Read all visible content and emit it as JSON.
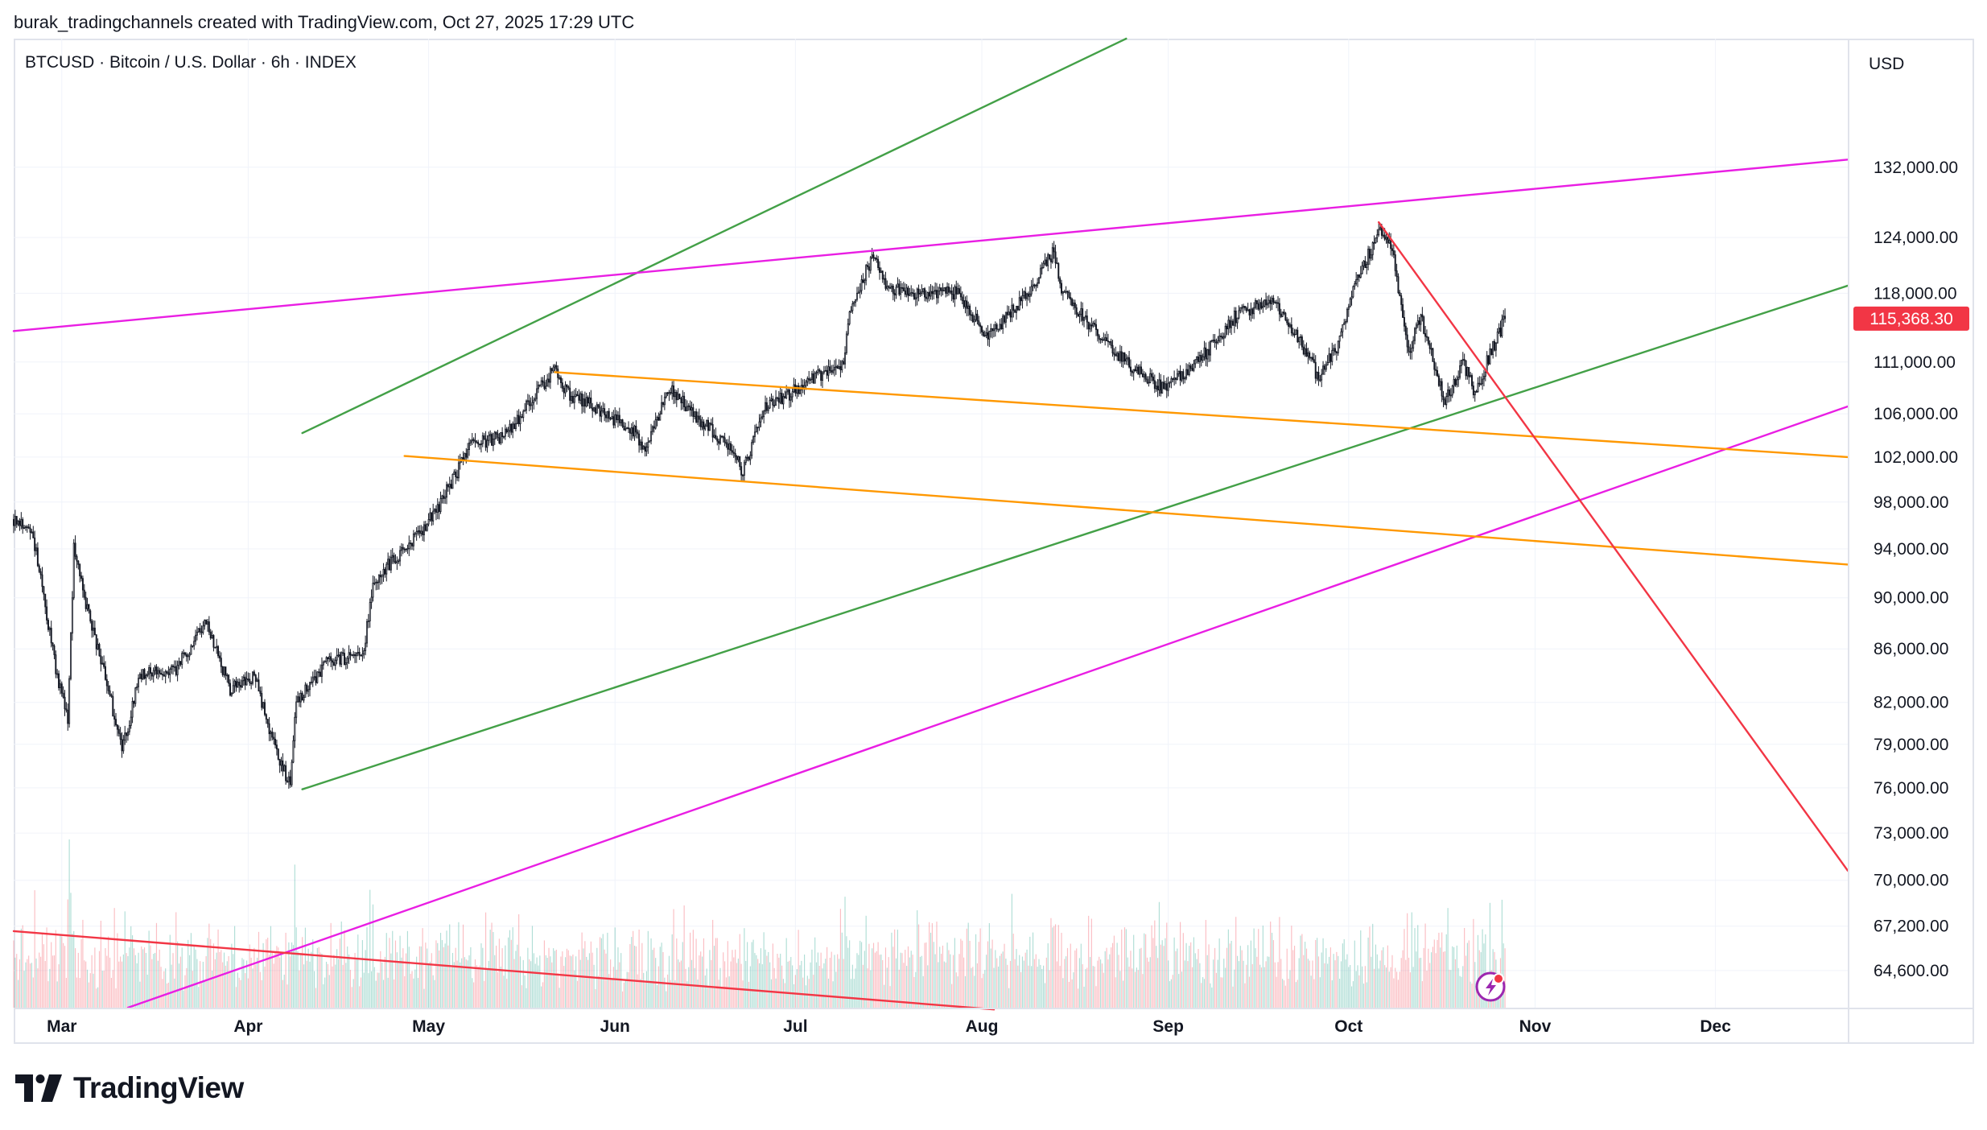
{
  "header": {
    "attribution": "burak_tradingchannels created with TradingView.com, Oct 27, 2025 17:29 UTC"
  },
  "footer": {
    "logo_text": "TradingView"
  },
  "colors": {
    "up": "#089981",
    "down": "#f23645",
    "candle": "#131722",
    "green_line": "#43a047",
    "magenta_line": "#e91ee3",
    "orange_line": "#ff9800",
    "red_line": "#f23645",
    "grid": "#f0f3fa",
    "axis_text": "#131722",
    "price_label_bg": "#f23645"
  },
  "chart_data": {
    "type": "candlestick",
    "symbol_title": "BTCUSD · Bitcoin / U.S. Dollar · 6h · INDEX",
    "currency_label": "USD",
    "current_price": 115368.3,
    "current_price_label": "115,368.30",
    "scale": "log",
    "ylim": [
      62500,
      148000
    ],
    "y_ticks": [
      132000,
      124000,
      118000,
      111000,
      106000,
      102000,
      98000,
      94000,
      90000,
      86000,
      82000,
      79000,
      76000,
      73000,
      70000,
      67200,
      64600
    ],
    "y_tick_labels": [
      "132,000.00",
      "124,000.00",
      "118,000.00",
      "111,000.00",
      "106,000.00",
      "102,000.00",
      "98,000.00",
      "94,000.00",
      "90,000.00",
      "86,000.00",
      "82,000.00",
      "79,000.00",
      "76,000.00",
      "73,000.00",
      "70,000.00",
      "67,200.00",
      "64,600.00"
    ],
    "x_range": [
      "2025-02-21",
      "2025-12-23"
    ],
    "x_ticks": [
      "2025-03-01",
      "2025-04-01",
      "2025-05-01",
      "2025-06-01",
      "2025-07-01",
      "2025-08-01",
      "2025-09-01",
      "2025-10-01",
      "2025-11-01",
      "2025-12-01"
    ],
    "x_tick_labels": [
      "Mar",
      "Apr",
      "May",
      "Jun",
      "Jul",
      "Aug",
      "Sep",
      "Oct",
      "Nov",
      "Dec"
    ],
    "price_path": [
      [
        "2025-02-21",
        96500
      ],
      [
        "2025-02-24",
        95800
      ],
      [
        "2025-02-28",
        84500
      ],
      [
        "2025-03-02",
        80500
      ],
      [
        "2025-03-03",
        94000
      ],
      [
        "2025-03-05",
        89500
      ],
      [
        "2025-03-09",
        82500
      ],
      [
        "2025-03-11",
        78500
      ],
      [
        "2025-03-14",
        84000
      ],
      [
        "2025-03-20",
        84500
      ],
      [
        "2025-03-25",
        88000
      ],
      [
        "2025-03-29",
        83000
      ],
      [
        "2025-04-02",
        84000
      ],
      [
        "2025-04-06",
        78000
      ],
      [
        "2025-04-08",
        76300
      ],
      [
        "2025-04-09",
        82000
      ],
      [
        "2025-04-14",
        85000
      ],
      [
        "2025-04-20",
        85500
      ],
      [
        "2025-04-22",
        91500
      ],
      [
        "2025-04-28",
        94500
      ],
      [
        "2025-05-02",
        97000
      ],
      [
        "2025-05-08",
        103000
      ],
      [
        "2025-05-14",
        104000
      ],
      [
        "2025-05-22",
        110500
      ],
      [
        "2025-05-24",
        108000
      ],
      [
        "2025-05-29",
        106500
      ],
      [
        "2025-06-04",
        104500
      ],
      [
        "2025-06-06",
        102800
      ],
      [
        "2025-06-10",
        108500
      ],
      [
        "2025-06-15",
        105500
      ],
      [
        "2025-06-21",
        102500
      ],
      [
        "2025-06-22",
        100500
      ],
      [
        "2025-06-26",
        106500
      ],
      [
        "2025-07-03",
        109000
      ],
      [
        "2025-07-09",
        111000
      ],
      [
        "2025-07-10",
        116500
      ],
      [
        "2025-07-14",
        122000
      ],
      [
        "2025-07-16",
        118500
      ],
      [
        "2025-07-22",
        118000
      ],
      [
        "2025-07-28",
        118000
      ],
      [
        "2025-08-02",
        113500
      ],
      [
        "2025-08-08",
        117500
      ],
      [
        "2025-08-13",
        122500
      ],
      [
        "2025-08-14",
        118500
      ],
      [
        "2025-08-20",
        114000
      ],
      [
        "2025-08-26",
        110500
      ],
      [
        "2025-08-31",
        108500
      ],
      [
        "2025-09-06",
        111000
      ],
      [
        "2025-09-12",
        115500
      ],
      [
        "2025-09-18",
        117500
      ],
      [
        "2025-09-22",
        114000
      ],
      [
        "2025-09-26",
        109500
      ],
      [
        "2025-09-29",
        112500
      ],
      [
        "2025-10-02",
        119000
      ],
      [
        "2025-10-06",
        124500
      ],
      [
        "2025-10-08",
        123500
      ],
      [
        "2025-10-10",
        116000
      ],
      [
        "2025-10-11",
        112000
      ],
      [
        "2025-10-13",
        115500
      ],
      [
        "2025-10-17",
        107000
      ],
      [
        "2025-10-20",
        111000
      ],
      [
        "2025-10-22",
        108000
      ],
      [
        "2025-10-24",
        111000
      ],
      [
        "2025-10-27",
        115368
      ]
    ],
    "drawn_lines": [
      {
        "name": "green-channel-upper",
        "color": "green_line",
        "from": [
          "2025-04-10",
          104200
        ],
        "to": [
          "2025-08-25",
          148000
        ]
      },
      {
        "name": "green-channel-lower",
        "color": "green_line",
        "from": [
          "2025-04-10",
          75900
        ],
        "to": [
          "2025-12-23",
          118800
        ]
      },
      {
        "name": "magenta-upper-resistance",
        "color": "magenta_line",
        "from": [
          "2025-02-21",
          114100
        ],
        "to": [
          "2025-12-23",
          132900
        ]
      },
      {
        "name": "magenta-lower-support",
        "color": "magenta_line",
        "from": [
          "2025-03-12",
          62500
        ],
        "to": [
          "2025-12-23",
          106700
        ]
      },
      {
        "name": "orange-channel-upper",
        "color": "orange_line",
        "from": [
          "2025-05-22",
          110000
        ],
        "to": [
          "2025-12-23",
          102000
        ]
      },
      {
        "name": "orange-channel-lower",
        "color": "orange_line",
        "from": [
          "2025-04-27",
          102100
        ],
        "to": [
          "2025-12-23",
          92700
        ]
      },
      {
        "name": "red-downtrend-line",
        "color": "red_line",
        "from": [
          "2025-10-06",
          125700
        ],
        "to": [
          "2025-12-23",
          70600
        ]
      },
      {
        "name": "red-volume-trendline",
        "color": "red_line",
        "from": [
          "2025-02-21",
          66900
        ],
        "to": [
          "2025-08-03",
          62400
        ]
      }
    ]
  }
}
